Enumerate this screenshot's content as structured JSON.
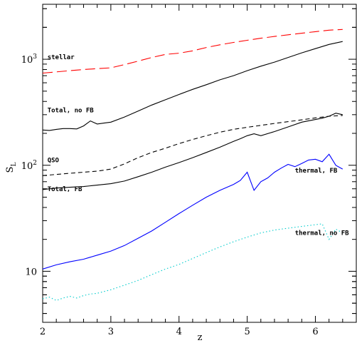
{
  "chart_data": {
    "type": "line",
    "xlabel": "z",
    "ylabel": "S",
    "ylabel_sub": "L",
    "xlim": [
      2,
      6.6
    ],
    "ylim": [
      3.3,
      3300
    ],
    "y_scale": "log",
    "x_ticks": [
      "2",
      "3",
      "4",
      "5",
      "6"
    ],
    "y_ticks": [
      {
        "value": 10,
        "label": "10"
      },
      {
        "value": 100,
        "label": "10",
        "sup": "2"
      },
      {
        "value": 1000,
        "label": "10",
        "sup": "3"
      }
    ],
    "series": [
      {
        "name": "stellar",
        "color": "#ff0000",
        "style": "longdash",
        "x": [
          2.0,
          2.2,
          2.4,
          2.6,
          2.8,
          3.0,
          3.2,
          3.4,
          3.6,
          3.8,
          4.0,
          4.2,
          4.4,
          4.6,
          4.8,
          5.0,
          5.2,
          5.4,
          5.6,
          5.8,
          6.0,
          6.2,
          6.4
        ],
        "y": [
          740,
          760,
          780,
          800,
          815,
          830,
          890,
          960,
          1040,
          1110,
          1140,
          1200,
          1290,
          1370,
          1440,
          1510,
          1580,
          1640,
          1700,
          1760,
          1820,
          1880,
          1910
        ]
      },
      {
        "name": "Total, no FB",
        "color": "#000000",
        "style": "solid",
        "x": [
          2.0,
          2.1,
          2.2,
          2.3,
          2.4,
          2.5,
          2.6,
          2.7,
          2.8,
          2.9,
          3.0,
          3.2,
          3.4,
          3.6,
          3.8,
          4.0,
          4.2,
          4.4,
          4.6,
          4.8,
          5.0,
          5.2,
          5.4,
          5.6,
          5.8,
          6.0,
          6.2,
          6.4
        ],
        "y": [
          215,
          213,
          218,
          222,
          222,
          220,
          235,
          262,
          245,
          250,
          255,
          285,
          325,
          370,
          415,
          465,
          520,
          575,
          640,
          700,
          780,
          860,
          940,
          1040,
          1150,
          1260,
          1380,
          1470
        ]
      },
      {
        "name": "QSO",
        "color": "#000000",
        "style": "dash",
        "x": [
          2.0,
          2.2,
          2.4,
          2.6,
          2.8,
          3.0,
          3.2,
          3.4,
          3.6,
          3.8,
          4.0,
          4.2,
          4.4,
          4.6,
          4.8,
          5.0,
          5.2,
          5.4,
          5.6,
          5.8,
          6.0,
          6.2,
          6.4
        ],
        "y": [
          80,
          82,
          84,
          86,
          88,
          92,
          103,
          118,
          132,
          145,
          160,
          175,
          190,
          205,
          218,
          228,
          238,
          248,
          258,
          268,
          280,
          290,
          295
        ]
      },
      {
        "name": "Total, FB",
        "color": "#000000",
        "style": "solid",
        "x": [
          2.0,
          2.2,
          2.4,
          2.6,
          2.8,
          3.0,
          3.2,
          3.4,
          3.6,
          3.8,
          4.0,
          4.2,
          4.4,
          4.6,
          4.8,
          4.9,
          5.0,
          5.1,
          5.2,
          5.4,
          5.6,
          5.8,
          6.0,
          6.1,
          6.2,
          6.3,
          6.4
        ],
        "y": [
          59,
          61,
          62,
          63,
          65,
          67,
          71,
          78,
          86,
          96,
          106,
          118,
          132,
          148,
          168,
          178,
          190,
          198,
          190,
          208,
          230,
          255,
          270,
          278,
          290,
          310,
          300
        ]
      },
      {
        "name": "thermal, FB",
        "color": "#0000ff",
        "style": "solid",
        "x": [
          2.0,
          2.2,
          2.4,
          2.6,
          2.8,
          3.0,
          3.2,
          3.4,
          3.6,
          3.8,
          4.0,
          4.2,
          4.4,
          4.6,
          4.8,
          4.9,
          5.0,
          5.1,
          5.2,
          5.3,
          5.4,
          5.5,
          5.6,
          5.7,
          5.8,
          5.9,
          6.0,
          6.1,
          6.2,
          6.3,
          6.4
        ],
        "y": [
          10.5,
          11.5,
          12.3,
          13,
          14.2,
          15.5,
          17.5,
          20.5,
          24,
          29,
          35,
          42,
          50,
          58,
          66,
          72,
          86,
          58,
          70,
          76,
          86,
          94,
          102,
          97,
          104,
          112,
          114,
          108,
          127,
          100,
          92
        ]
      },
      {
        "name": "thermal, no FB",
        "color": "#00cccc",
        "style": "dot",
        "x": [
          2.0,
          2.1,
          2.2,
          2.3,
          2.4,
          2.5,
          2.6,
          2.7,
          2.8,
          3.0,
          3.2,
          3.4,
          3.6,
          3.8,
          4.0,
          4.2,
          4.4,
          4.6,
          4.8,
          5.0,
          5.2,
          5.4,
          5.6,
          5.8,
          6.0,
          6.1,
          6.2,
          6.3,
          6.4
        ],
        "y": [
          5.5,
          5.7,
          5.3,
          5.6,
          5.8,
          5.6,
          5.9,
          6.1,
          6.2,
          6.7,
          7.4,
          8.2,
          9.3,
          10.5,
          11.6,
          13.2,
          15,
          17,
          19,
          21,
          23,
          24.5,
          25.5,
          26.5,
          27.5,
          28,
          20,
          25,
          23
        ]
      }
    ],
    "annotations": [
      {
        "text": "stellar",
        "x": 2.07,
        "y": 1000
      },
      {
        "text": "Total, no FB",
        "x": 2.07,
        "y": 316
      },
      {
        "text": "QSO",
        "x": 2.07,
        "y": 107
      },
      {
        "text": "Total, FB",
        "x": 2.07,
        "y": 57
      },
      {
        "text": "thermal, FB",
        "x": 5.7,
        "y": 85
      },
      {
        "text": "thermal, no FB",
        "x": 5.7,
        "y": 22
      }
    ]
  }
}
